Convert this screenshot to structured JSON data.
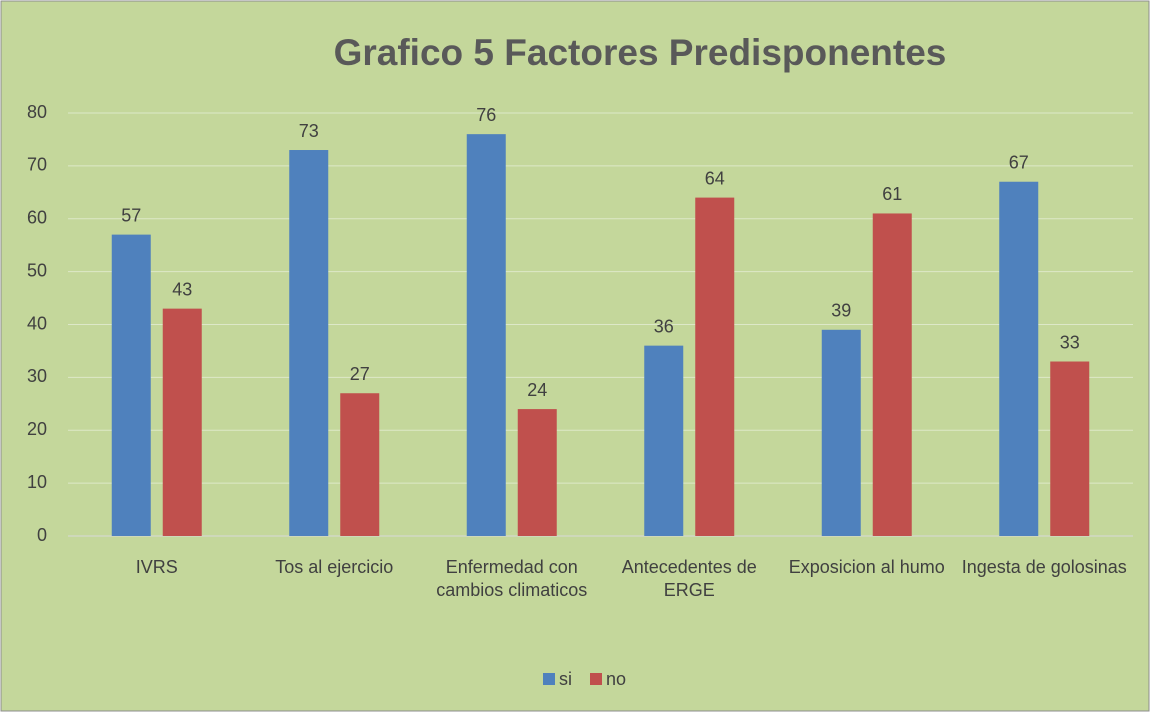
{
  "chart_data": {
    "type": "bar",
    "title": "Grafico 5 Factores Predisponentes",
    "categories": [
      "IVRS",
      "Tos al ejercicio",
      "Enfermedad con cambios climaticos",
      "Antecedentes de ERGE",
      "Exposicion al humo",
      "Ingesta de golosinas"
    ],
    "series": [
      {
        "name": "si",
        "color": "#4f81bd",
        "values": [
          57,
          73,
          76,
          36,
          39,
          67
        ]
      },
      {
        "name": "no",
        "color": "#c0504d",
        "values": [
          43,
          27,
          24,
          64,
          61,
          33
        ]
      }
    ],
    "ylim": [
      0,
      80
    ],
    "yticks": [
      0,
      10,
      20,
      30,
      40,
      50,
      60,
      70,
      80
    ],
    "grid": true,
    "legend": "bottom",
    "background": "#c4d79b"
  }
}
